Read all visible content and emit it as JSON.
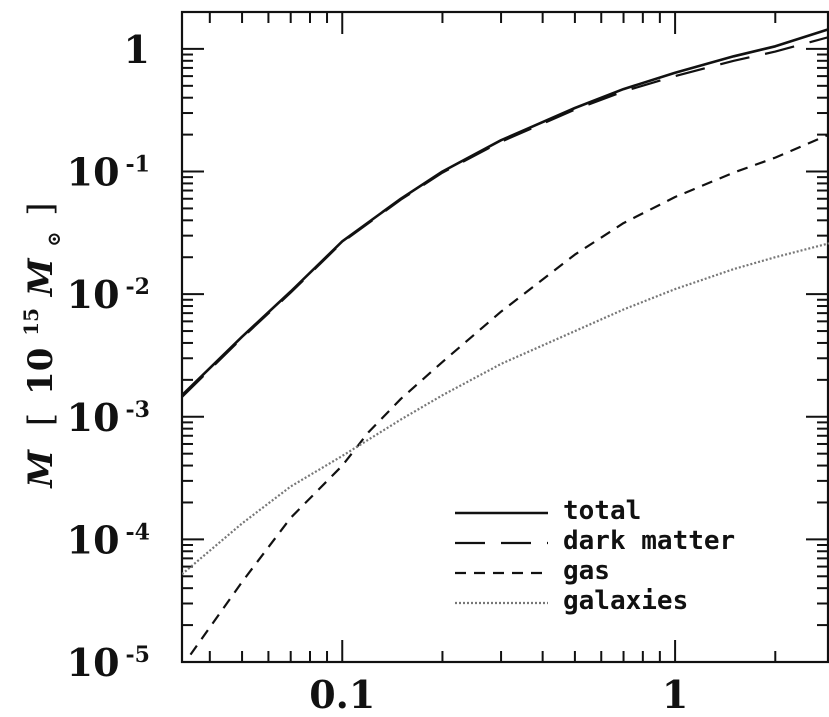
{
  "chart_data": {
    "type": "line",
    "title": "",
    "xlabel": "",
    "ylabel": {
      "main": "M",
      "bracket_open": "[",
      "base": "10",
      "exponent": "15",
      "unit": "M",
      "unit_subscript": "⊙",
      "bracket_close": "]"
    },
    "xscale": "log",
    "yscale": "log",
    "xlim": [
      0.033,
      2.9
    ],
    "ylim": [
      1e-05,
      2.0
    ],
    "x_ticks": [
      {
        "value": 0.1,
        "label": "0.1"
      },
      {
        "value": 1,
        "label": "1"
      }
    ],
    "y_ticks": [
      {
        "value": 1,
        "base": "1",
        "exp": ""
      },
      {
        "value": 0.1,
        "base": "10",
        "exp": "-1"
      },
      {
        "value": 0.01,
        "base": "10",
        "exp": "-2"
      },
      {
        "value": 0.001,
        "base": "10",
        "exp": "-3"
      },
      {
        "value": 0.0001,
        "base": "10",
        "exp": "-4"
      },
      {
        "value": 1e-05,
        "base": "10",
        "exp": "-5"
      }
    ],
    "grid": false,
    "legend_position": "bottom-right",
    "series": [
      {
        "name": "total",
        "style": "solid",
        "color": "#111111",
        "x": [
          0.033,
          0.05,
          0.07,
          0.1,
          0.15,
          0.2,
          0.3,
          0.5,
          0.7,
          1.0,
          1.5,
          2.0,
          2.9
        ],
        "y": [
          0.0015,
          0.0045,
          0.0105,
          0.027,
          0.06,
          0.1,
          0.18,
          0.33,
          0.47,
          0.64,
          0.87,
          1.05,
          1.45
        ]
      },
      {
        "name": "dark matter",
        "style": "dashed-long",
        "color": "#111111",
        "x": [
          0.033,
          0.05,
          0.07,
          0.1,
          0.15,
          0.2,
          0.3,
          0.5,
          0.7,
          1.0,
          1.5,
          2.0,
          2.9
        ],
        "y": [
          0.00145,
          0.0044,
          0.0103,
          0.0265,
          0.059,
          0.098,
          0.175,
          0.32,
          0.45,
          0.6,
          0.8,
          0.95,
          1.25
        ]
      },
      {
        "name": "gas",
        "style": "dashed-short",
        "color": "#111111",
        "x": [
          0.035,
          0.05,
          0.07,
          0.1,
          0.12,
          0.15,
          0.2,
          0.3,
          0.5,
          0.7,
          1.0,
          1.5,
          2.0,
          2.9
        ],
        "y": [
          1.15e-05,
          4.5e-05,
          0.00015,
          0.0004,
          0.00075,
          0.0014,
          0.0028,
          0.0072,
          0.021,
          0.038,
          0.062,
          0.098,
          0.13,
          0.2
        ]
      },
      {
        "name": "galaxies",
        "style": "dotted",
        "color": "#777777",
        "x": [
          0.033,
          0.05,
          0.07,
          0.1,
          0.15,
          0.2,
          0.3,
          0.5,
          0.7,
          1.0,
          1.5,
          2.0,
          2.9
        ],
        "y": [
          5.2e-05,
          0.000135,
          0.00027,
          0.00048,
          0.00095,
          0.0015,
          0.0027,
          0.005,
          0.0075,
          0.011,
          0.016,
          0.02,
          0.026
        ]
      }
    ]
  }
}
